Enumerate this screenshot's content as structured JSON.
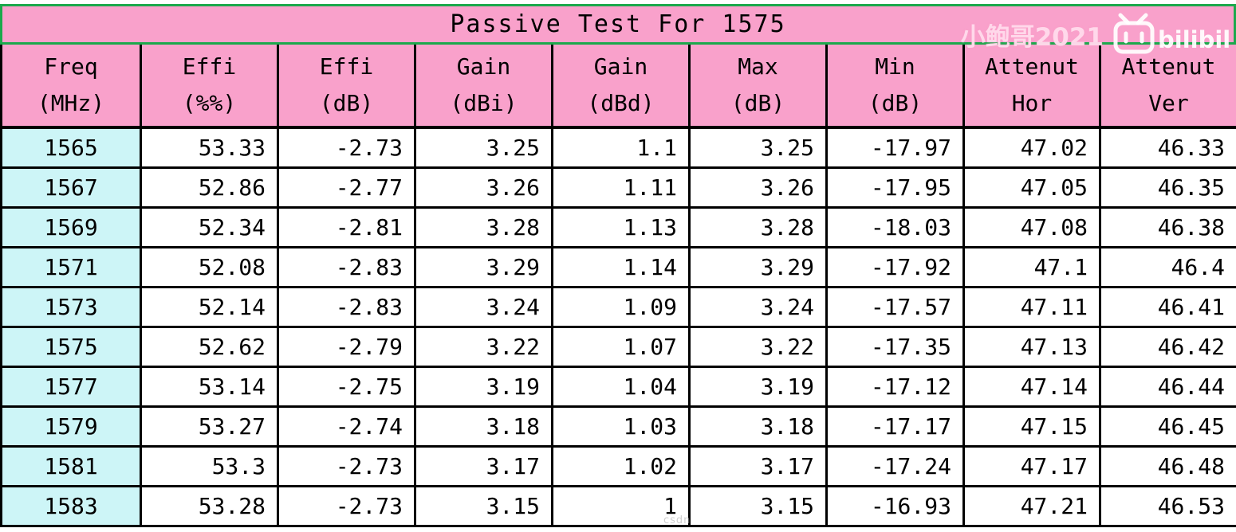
{
  "title": "Passive Test For 1575",
  "watermark": {
    "text": "小鲍哥2021",
    "logo": "bilibili-logo"
  },
  "csdn_watermark": "csdn",
  "colors": {
    "header_pink": "#F9A1CB",
    "freq_column_cyan": "#CDF5F7",
    "title_border_green": "#1BA94C",
    "grid_black": "#000000"
  },
  "table": {
    "headers": [
      [
        "Freq",
        "(MHz)"
      ],
      [
        "Effi",
        "(%%)"
      ],
      [
        "Effi",
        "(dB)"
      ],
      [
        "Gain",
        "(dBi)"
      ],
      [
        "Gain",
        "(dBd)"
      ],
      [
        "Max",
        "(dB)"
      ],
      [
        "Min",
        "(dB)"
      ],
      [
        "Attenut",
        "Hor"
      ],
      [
        "Attenut",
        "Ver"
      ]
    ],
    "rows": [
      [
        "1565",
        "53.33",
        "-2.73",
        "3.25",
        "1.1",
        "3.25",
        "-17.97",
        "47.02",
        "46.33"
      ],
      [
        "1567",
        "52.86",
        "-2.77",
        "3.26",
        "1.11",
        "3.26",
        "-17.95",
        "47.05",
        "46.35"
      ],
      [
        "1569",
        "52.34",
        "-2.81",
        "3.28",
        "1.13",
        "3.28",
        "-18.03",
        "47.08",
        "46.38"
      ],
      [
        "1571",
        "52.08",
        "-2.83",
        "3.29",
        "1.14",
        "3.29",
        "-17.92",
        "47.1",
        "46.4"
      ],
      [
        "1573",
        "52.14",
        "-2.83",
        "3.24",
        "1.09",
        "3.24",
        "-17.57",
        "47.11",
        "46.41"
      ],
      [
        "1575",
        "52.62",
        "-2.79",
        "3.22",
        "1.07",
        "3.22",
        "-17.35",
        "47.13",
        "46.42"
      ],
      [
        "1577",
        "53.14",
        "-2.75",
        "3.19",
        "1.04",
        "3.19",
        "-17.12",
        "47.14",
        "46.44"
      ],
      [
        "1579",
        "53.27",
        "-2.74",
        "3.18",
        "1.03",
        "3.18",
        "-17.17",
        "47.15",
        "46.45"
      ],
      [
        "1581",
        "53.3",
        "-2.73",
        "3.17",
        "1.02",
        "3.17",
        "-17.24",
        "47.17",
        "46.48"
      ],
      [
        "1583",
        "53.28",
        "-2.73",
        "3.15",
        "1",
        "3.15",
        "-16.93",
        "47.21",
        "46.53"
      ]
    ]
  },
  "chart_data": {
    "type": "table",
    "title": "Passive Test For 1575",
    "columns": [
      "Freq (MHz)",
      "Effi (%%)",
      "Effi (dB)",
      "Gain (dBi)",
      "Gain (dBd)",
      "Max (dB)",
      "Min (dB)",
      "Attenut Hor",
      "Attenut Ver"
    ],
    "rows": [
      [
        1565,
        53.33,
        -2.73,
        3.25,
        1.1,
        3.25,
        -17.97,
        47.02,
        46.33
      ],
      [
        1567,
        52.86,
        -2.77,
        3.26,
        1.11,
        3.26,
        -17.95,
        47.05,
        46.35
      ],
      [
        1569,
        52.34,
        -2.81,
        3.28,
        1.13,
        3.28,
        -18.03,
        47.08,
        46.38
      ],
      [
        1571,
        52.08,
        -2.83,
        3.29,
        1.14,
        3.29,
        -17.92,
        47.1,
        46.4
      ],
      [
        1573,
        52.14,
        -2.83,
        3.24,
        1.09,
        3.24,
        -17.57,
        47.11,
        46.41
      ],
      [
        1575,
        52.62,
        -2.79,
        3.22,
        1.07,
        3.22,
        -17.35,
        47.13,
        46.42
      ],
      [
        1577,
        53.14,
        -2.75,
        3.19,
        1.04,
        3.19,
        -17.12,
        47.14,
        46.44
      ],
      [
        1579,
        53.27,
        -2.74,
        3.18,
        1.03,
        3.18,
        -17.17,
        47.15,
        46.45
      ],
      [
        1581,
        53.3,
        -2.73,
        3.17,
        1.02,
        3.17,
        -17.24,
        47.17,
        46.48
      ],
      [
        1583,
        53.28,
        -2.73,
        3.15,
        1,
        3.15,
        -16.93,
        47.21,
        46.53
      ]
    ]
  }
}
